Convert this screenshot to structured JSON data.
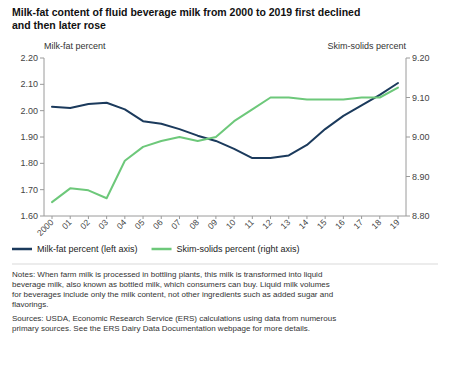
{
  "chart_data": {
    "type": "line",
    "title": "Milk-fat content of fluid beverage milk from 2000 to 2019 first declined\nand then later rose",
    "y_label": "Milk-fat percent",
    "y2_label": "Skim-solids percent",
    "categories": [
      "2000",
      "01",
      "02",
      "03",
      "04",
      "05",
      "06",
      "07",
      "08",
      "09",
      "10",
      "11",
      "12",
      "13",
      "14",
      "15",
      "16",
      "17",
      "18",
      "19"
    ],
    "series": [
      {
        "name": "Milk-fat percent (left axis)",
        "color": "#1b3a5c",
        "values": [
          2.015,
          2.01,
          2.025,
          2.03,
          2.005,
          1.96,
          1.95,
          1.93,
          1.905,
          1.885,
          1.855,
          1.82,
          1.82,
          1.83,
          1.87,
          1.93,
          1.98,
          2.02,
          2.06,
          2.105
        ]
      },
      {
        "name": "Skim-solids percent (right axis)",
        "color": "#6dc87a",
        "axis": "y2",
        "values": [
          8.835,
          8.87,
          8.865,
          8.845,
          8.94,
          8.975,
          8.99,
          9.0,
          8.99,
          9.0,
          9.04,
          9.07,
          9.1,
          9.1,
          9.095,
          9.095,
          9.095,
          9.1,
          9.1,
          9.125
        ]
      }
    ],
    "ylim": [
      1.6,
      2.2
    ],
    "yticks": [
      {
        "value": 1.6,
        "label": "1.60"
      },
      {
        "value": 1.7,
        "label": "1.70"
      },
      {
        "value": 1.8,
        "label": "1.80"
      },
      {
        "value": 1.9,
        "label": "1.90"
      },
      {
        "value": 2.0,
        "label": "2.00"
      },
      {
        "value": 2.1,
        "label": "2.10"
      },
      {
        "value": 2.2,
        "label": "2.20"
      }
    ],
    "y2lim": [
      8.8,
      9.2
    ],
    "y2ticks": [
      {
        "value": 8.8,
        "label": "8.80"
      },
      {
        "value": 8.9,
        "label": "8.90"
      },
      {
        "value": 9.0,
        "label": "9.00"
      },
      {
        "value": 9.1,
        "label": "9.10"
      },
      {
        "value": 9.2,
        "label": "9.20"
      }
    ],
    "grid": false,
    "legend": "bottom",
    "annotations": [
      "Notes: When farm milk is processed in bottling plants, this milk is transformed into liquid\nbeverage milk, also known as bottled milk, which consumers can buy. Liquid milk volumes\nfor beverages include only the milk content, not other ingredients such as added sugar and\nflavorings.",
      "Sources: USDA, Economic Research Service (ERS) calculations using data from numerous\nprimary sources. See the ERS Dairy Data Documentation webpage for more details."
    ]
  }
}
